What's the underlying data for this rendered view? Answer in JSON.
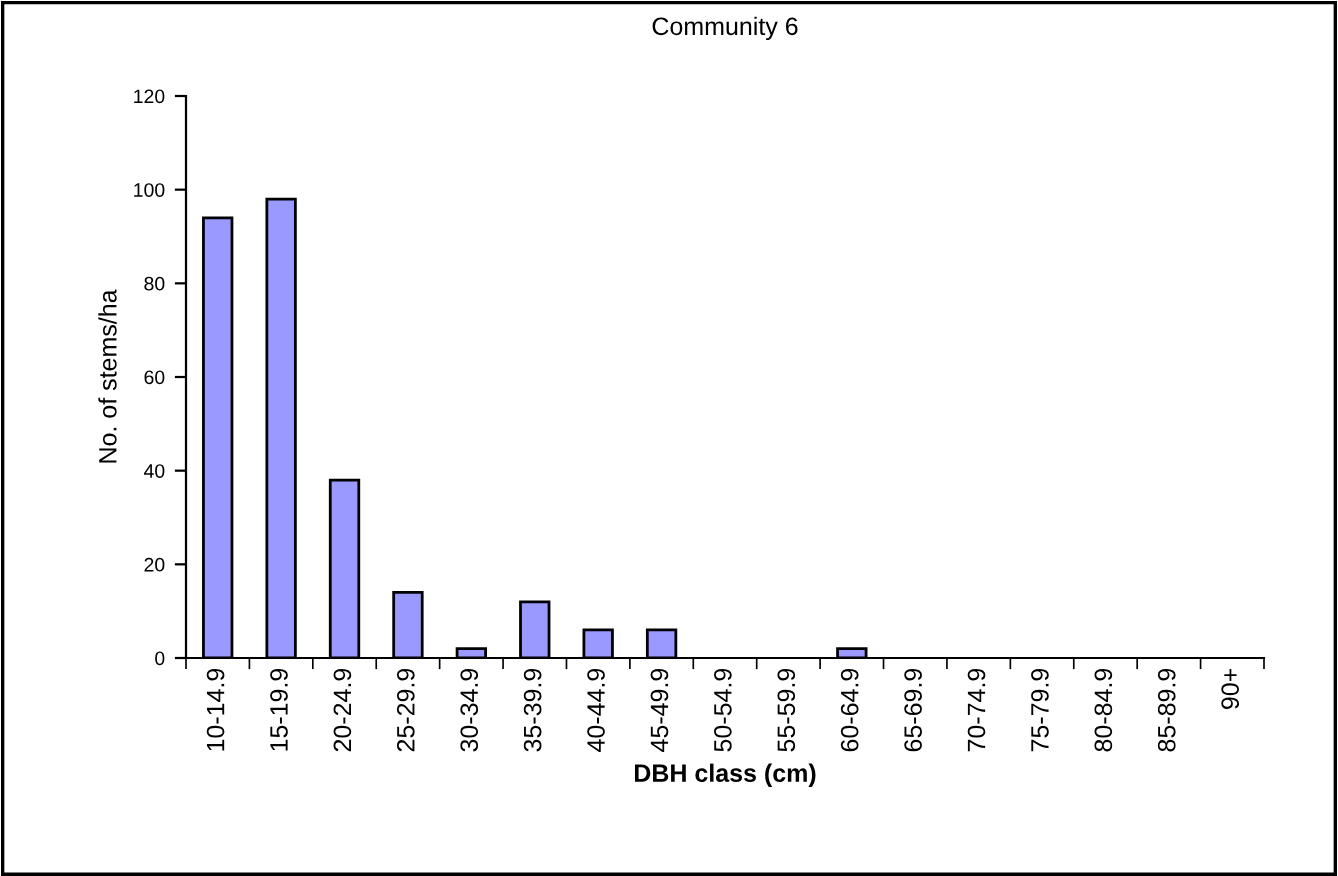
{
  "chart_data": {
    "type": "bar",
    "title": "Community 6",
    "xlabel": "DBH class (cm)",
    "ylabel": "No. of stems/ha",
    "categories": [
      "10-14.9",
      "15-19.9",
      "20-24.9",
      "25-29.9",
      "30-34.9",
      "35-39.9",
      "40-44.9",
      "45-49.9",
      "50-54.9",
      "55-59.9",
      "60-64.9",
      "65-69.9",
      "70-74.9",
      "75-79.9",
      "80-84.9",
      "85-89.9",
      "90+"
    ],
    "values": [
      94,
      98,
      38,
      14,
      2,
      12,
      6,
      6,
      0,
      0,
      2,
      0,
      0,
      0,
      0,
      0,
      0
    ],
    "color": "#9999ff",
    "ylim": [
      0,
      120
    ],
    "yticks": [
      0,
      20,
      40,
      60,
      80,
      100,
      120
    ],
    "grid": false,
    "legend": false
  }
}
